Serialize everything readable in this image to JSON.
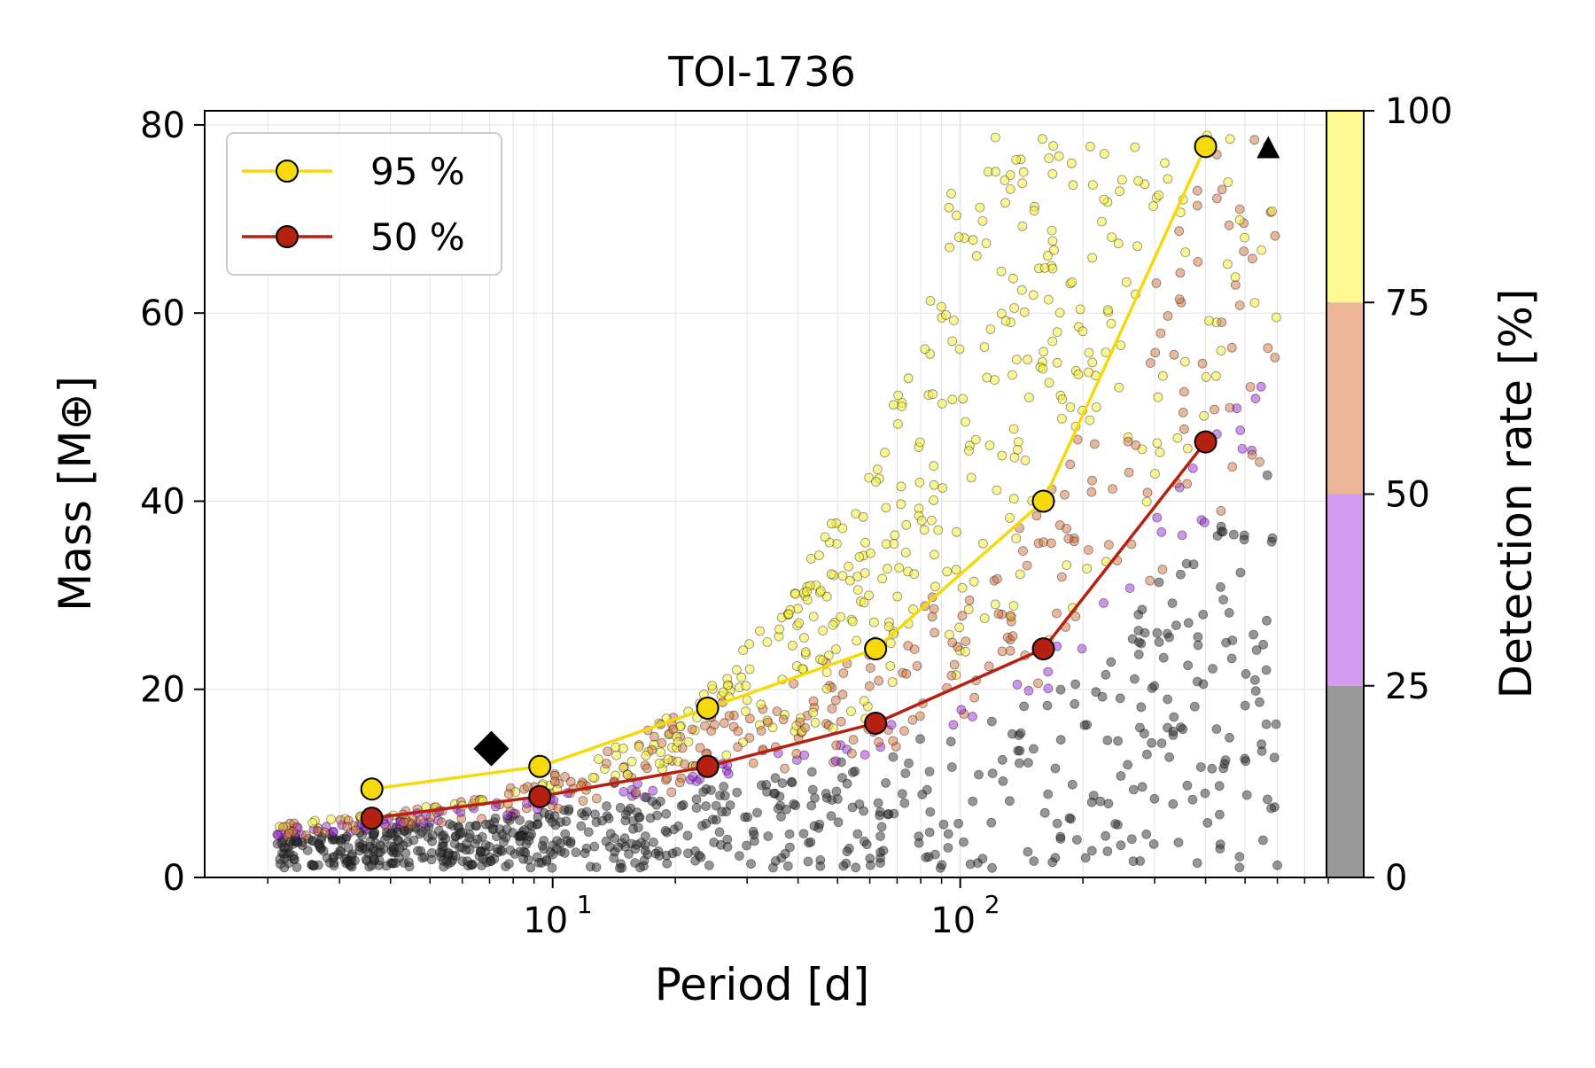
{
  "chart_data": {
    "type": "scatter",
    "title": "TOI-1736",
    "xlabel": "Period [d]",
    "ylabel": "Mass [M⊕]",
    "xscale": "log",
    "xlim": [
      1.4,
      800
    ],
    "ylim": [
      0,
      81.5
    ],
    "grid": true,
    "x_major_ticks": [
      {
        "value": 10,
        "base": "10",
        "exp": "1"
      },
      {
        "value": 100,
        "base": "10",
        "exp": "2"
      }
    ],
    "y_ticks": [
      0,
      20,
      40,
      60,
      80
    ],
    "legend": {
      "position": "top-left",
      "entries": [
        {
          "label": "95 %",
          "color": "#f5d90a"
        },
        {
          "label": "50 %",
          "color": "#b52010"
        }
      ]
    },
    "series": [
      {
        "name": "95 %",
        "color": "#f5d90a",
        "marker_fill": "#f5d90a",
        "x": [
          3.6,
          9.3,
          24,
          62,
          160,
          400
        ],
        "y": [
          9.4,
          11.8,
          18.0,
          24.3,
          40.0,
          77.7
        ]
      },
      {
        "name": "50 %",
        "color": "#b52010",
        "marker_fill": "#b52010",
        "x": [
          3.6,
          9.3,
          24,
          62,
          160,
          400
        ],
        "y": [
          6.3,
          8.6,
          11.8,
          16.4,
          24.3,
          46.3
        ]
      }
    ],
    "known_planets": [
      {
        "marker": "diamond",
        "period": 7.07,
        "mass": 13.7
      },
      {
        "marker": "triangle",
        "period": 570,
        "mass": 77.5
      }
    ],
    "colorbar": {
      "label": "Detection rate [%]",
      "ticks": [
        0,
        25,
        50,
        75,
        100
      ],
      "bands": [
        {
          "from": 0,
          "to": 25,
          "color": "#999999",
          "dot": "#2b2b2b"
        },
        {
          "from": 25,
          "to": 50,
          "color": "#d49cf0",
          "dot": "#9a2ad8"
        },
        {
          "from": 50,
          "to": 75,
          "color": "#ebb598",
          "dot": "#d2703a"
        },
        {
          "from": 75,
          "to": 100,
          "color": "#fdfa94",
          "dot": "#f5f03a"
        }
      ]
    },
    "simulated_injections": {
      "period_range": [
        2.1,
        600
      ],
      "count": 1500,
      "note": "cloud of simulated planets coloured by detection rate"
    }
  }
}
